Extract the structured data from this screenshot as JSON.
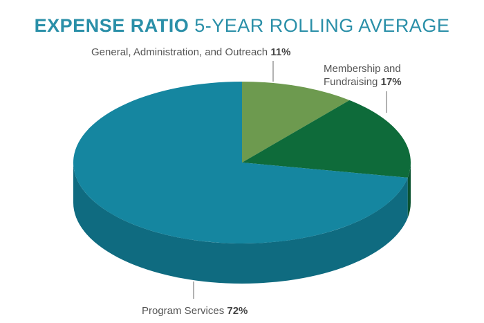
{
  "chart_data": {
    "type": "pie",
    "title_bold": "EXPENSE RATIO",
    "title_rest": "5-YEAR ROLLING AVERAGE",
    "slices": [
      {
        "label": "General, Administration, and Outreach",
        "value": 11,
        "value_label": "11%",
        "color": "#6d9a4f",
        "side_color": "#557a3c"
      },
      {
        "label_line1": "Membership and",
        "label_line2": "Fundraising",
        "value": 17,
        "value_label": "17%",
        "color": "#0e6b3a",
        "side_color": "#0a5230"
      },
      {
        "label": "Program Services",
        "value": 72,
        "value_label": "72%",
        "color": "#1586a0",
        "side_color": "#0f6b80"
      }
    ]
  }
}
